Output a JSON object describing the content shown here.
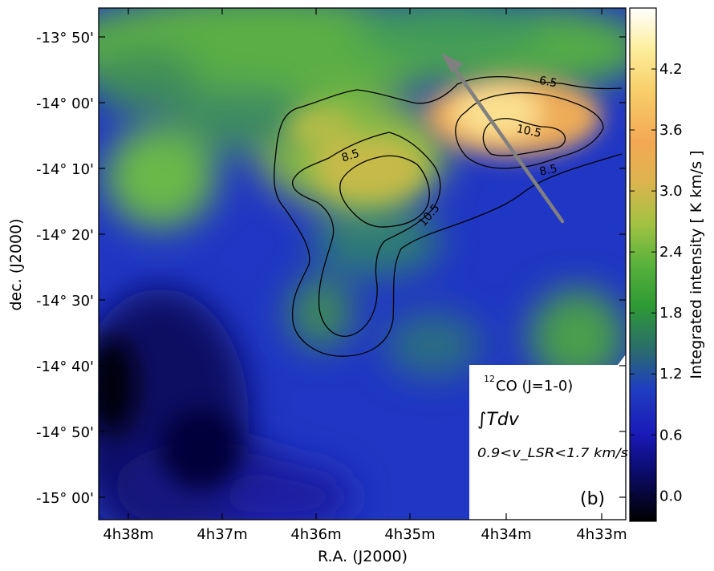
{
  "chart_data": {
    "type": "heatmap",
    "xlabel": "R.A. (J2000)",
    "ylabel": "dec. (J2000)",
    "x_ticks": [
      "4h38m",
      "4h37m",
      "4h36m",
      "4h35m",
      "4h34m",
      "4h33m"
    ],
    "y_ticks": [
      "-13° 50'",
      "-14° 00'",
      "-14° 10'",
      "-14° 20'",
      "-14° 30'",
      "-14° 40'",
      "-14° 50'",
      "-15° 00'"
    ],
    "colorbar": {
      "label": "Integrated intensity [ K km/s ]",
      "ticks": [
        "0.0",
        "0.6",
        "1.2",
        "1.8",
        "2.4",
        "3.0",
        "3.6",
        "4.2"
      ],
      "tick_values": [
        0.0,
        0.6,
        1.2,
        1.8,
        2.4,
        3.0,
        3.6,
        4.2
      ],
      "range": [
        -0.25,
        4.8
      ],
      "colors": [
        "#000000",
        "#1a1ab8",
        "#2a8a3a",
        "#55b04a",
        "#a4c040",
        "#f2ac52",
        "#fbe078",
        "#ffffff"
      ]
    },
    "contour_labels": [
      "6.5",
      "10.5",
      "8.5",
      "8.5",
      "10.5"
    ],
    "legend": {
      "line1": "CO (J=1-0)",
      "superscript": "12",
      "line2": "∫Tdv",
      "line3": "0.9<v_LSR<1.7 km/s",
      "panel": "(b)"
    },
    "arrow_color": "#808080"
  }
}
